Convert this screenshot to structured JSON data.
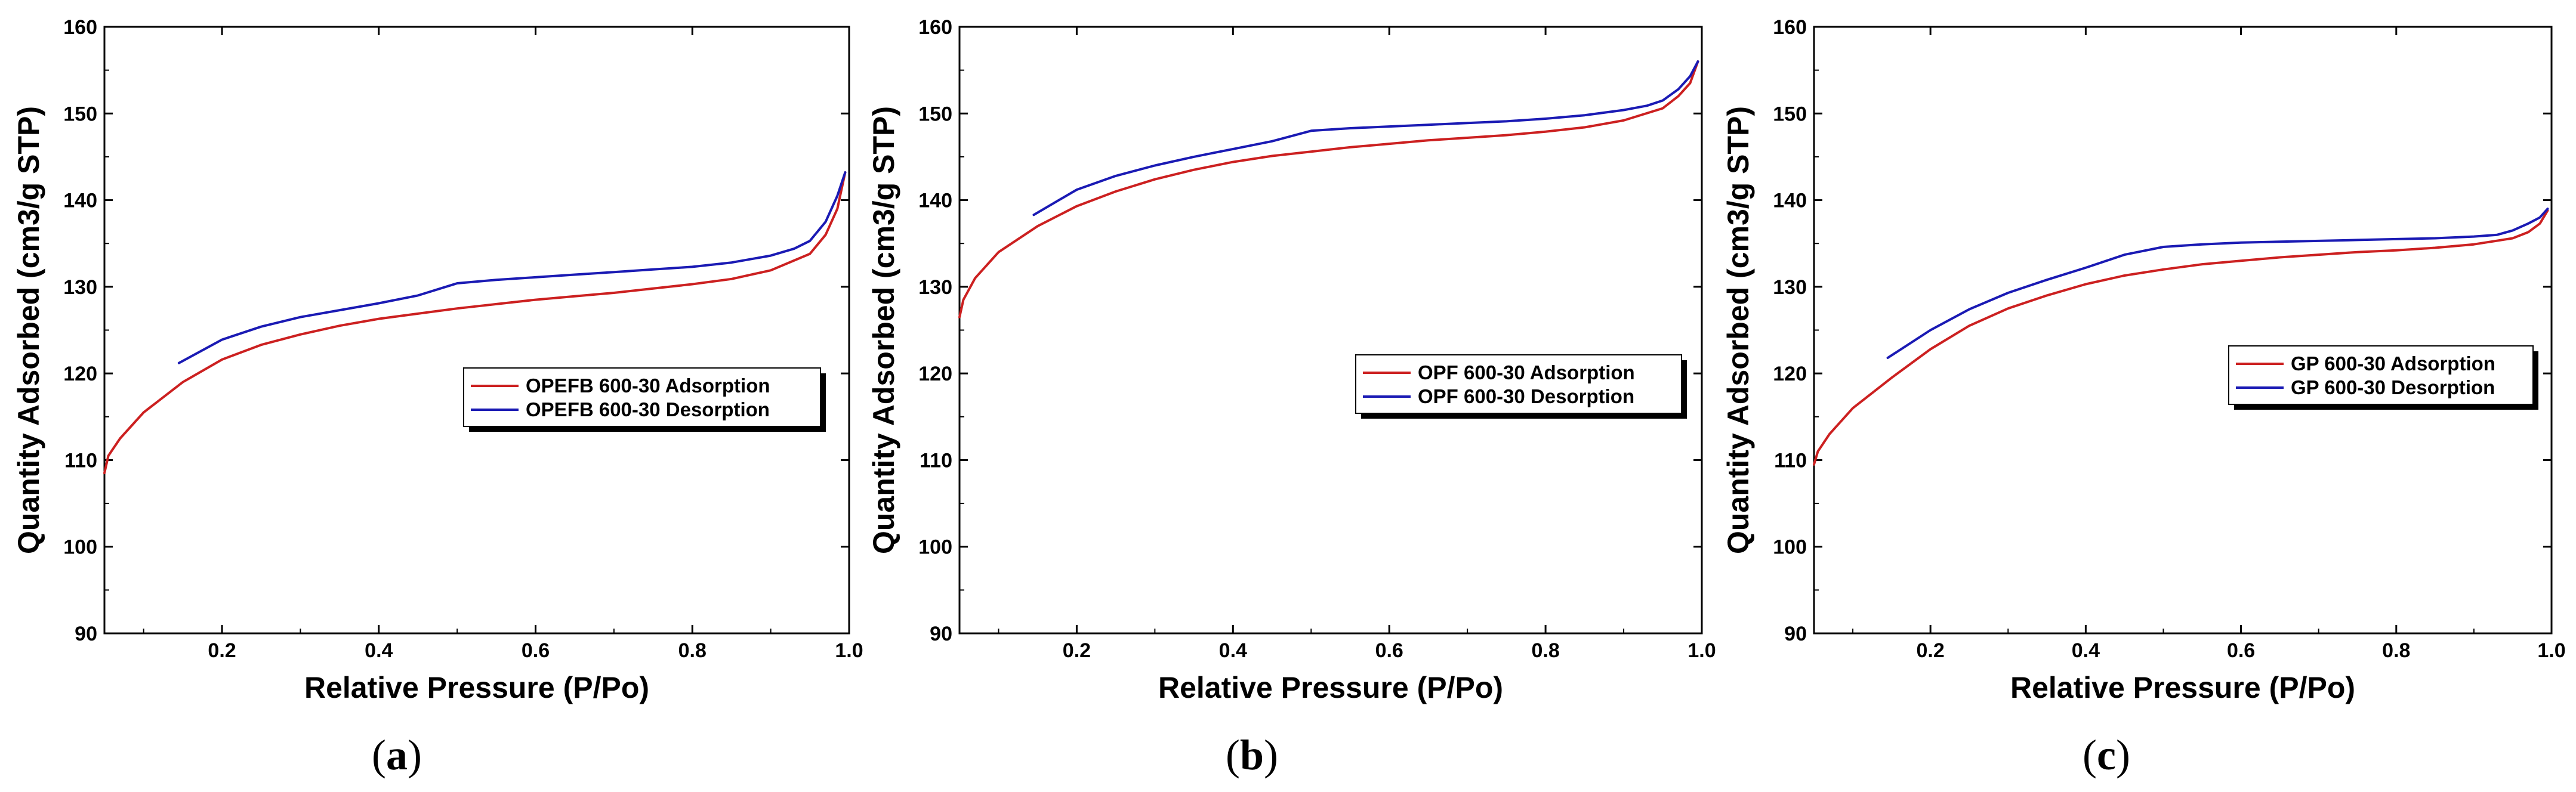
{
  "figure": {
    "colors": {
      "adsorption": "#cc2020",
      "desorption": "#1a1ab4",
      "axis": "#000000"
    }
  },
  "chart_data": [
    {
      "type": "line",
      "panel_label": "a",
      "caption_open": "(",
      "caption_close": ")",
      "xlabel": "Relative Pressure (P/Po)",
      "ylabel": "Quantity Adsorbed (cm3/g STP)",
      "xlim": [
        0.05,
        1.0
      ],
      "ylim": [
        90,
        160
      ],
      "xticks": [
        0.2,
        0.4,
        0.6,
        0.8,
        1.0
      ],
      "xtick_labels": [
        "0.2",
        "0.4",
        "0.6",
        "0.8",
        "1.0"
      ],
      "yticks": [
        90,
        100,
        110,
        120,
        130,
        140,
        150,
        160
      ],
      "ytick_labels": [
        "90",
        "100",
        "110",
        "120",
        "130",
        "140",
        "150",
        "160"
      ],
      "legend_position": "center-right",
      "series": [
        {
          "name": "OPEFB 600-30 Adsorption",
          "role": "adsorption",
          "x": [
            0.05,
            0.055,
            0.07,
            0.1,
            0.15,
            0.2,
            0.25,
            0.3,
            0.35,
            0.4,
            0.45,
            0.5,
            0.55,
            0.6,
            0.65,
            0.7,
            0.75,
            0.8,
            0.85,
            0.9,
            0.95,
            0.97,
            0.985,
            0.995
          ],
          "y": [
            108.5,
            110.5,
            112.5,
            115.5,
            119.0,
            121.6,
            123.3,
            124.5,
            125.5,
            126.3,
            126.9,
            127.5,
            128.0,
            128.5,
            128.9,
            129.3,
            129.8,
            130.3,
            130.9,
            131.9,
            133.8,
            136.0,
            139.0,
            143.2
          ]
        },
        {
          "name": "OPEFB 600-30 Desorption",
          "role": "desorption",
          "x": [
            0.145,
            0.2,
            0.25,
            0.3,
            0.35,
            0.4,
            0.45,
            0.5,
            0.55,
            0.6,
            0.65,
            0.7,
            0.75,
            0.8,
            0.85,
            0.9,
            0.93,
            0.95,
            0.97,
            0.985,
            0.995
          ],
          "y": [
            121.2,
            123.9,
            125.4,
            126.5,
            127.3,
            128.1,
            129.0,
            130.4,
            130.8,
            131.1,
            131.4,
            131.7,
            132.0,
            132.3,
            132.8,
            133.6,
            134.4,
            135.3,
            137.5,
            140.5,
            143.2
          ]
        }
      ]
    },
    {
      "type": "line",
      "panel_label": "b",
      "caption_open": "(",
      "caption_close": ")",
      "xlabel": "Relative Pressure (P/Po)",
      "ylabel": "Quantity Adsorbed (cm3/g STP)",
      "xlim": [
        0.05,
        1.0
      ],
      "ylim": [
        90,
        160
      ],
      "xticks": [
        0.2,
        0.4,
        0.6,
        0.8,
        1.0
      ],
      "xtick_labels": [
        "0.2",
        "0.4",
        "0.6",
        "0.8",
        "1.0"
      ],
      "yticks": [
        90,
        100,
        110,
        120,
        130,
        140,
        150,
        160
      ],
      "ytick_labels": [
        "90",
        "100",
        "110",
        "120",
        "130",
        "140",
        "150",
        "160"
      ],
      "legend_position": "center-right",
      "series": [
        {
          "name": "OPF 600-30 Adsorption",
          "role": "adsorption",
          "x": [
            0.05,
            0.055,
            0.07,
            0.1,
            0.15,
            0.2,
            0.25,
            0.3,
            0.35,
            0.4,
            0.45,
            0.5,
            0.55,
            0.6,
            0.65,
            0.7,
            0.75,
            0.8,
            0.85,
            0.9,
            0.95,
            0.97,
            0.985,
            0.995
          ],
          "y": [
            126.5,
            128.5,
            131.0,
            134.0,
            137.0,
            139.3,
            141.0,
            142.4,
            143.5,
            144.4,
            145.1,
            145.6,
            146.1,
            146.5,
            146.9,
            147.2,
            147.5,
            147.9,
            148.4,
            149.2,
            150.6,
            152.0,
            153.5,
            156.0
          ]
        },
        {
          "name": "OPF 600-30 Desorption",
          "role": "desorption",
          "x": [
            0.145,
            0.2,
            0.25,
            0.3,
            0.35,
            0.4,
            0.45,
            0.5,
            0.55,
            0.6,
            0.65,
            0.7,
            0.75,
            0.8,
            0.85,
            0.9,
            0.93,
            0.95,
            0.97,
            0.985,
            0.995
          ],
          "y": [
            138.3,
            141.2,
            142.8,
            144.0,
            145.0,
            145.9,
            146.8,
            148.0,
            148.3,
            148.5,
            148.7,
            148.9,
            149.1,
            149.4,
            149.8,
            150.4,
            150.9,
            151.5,
            152.8,
            154.3,
            156.0
          ]
        }
      ]
    },
    {
      "type": "line",
      "panel_label": "c",
      "caption_open": "(",
      "caption_close": ")",
      "xlabel": "Relative Pressure (P/Po)",
      "ylabel": "Quantity Adsorbed (cm3/g STP)",
      "xlim": [
        0.05,
        1.0
      ],
      "ylim": [
        90,
        160
      ],
      "xticks": [
        0.2,
        0.4,
        0.6,
        0.8,
        1.0
      ],
      "xtick_labels": [
        "0.2",
        "0.4",
        "0.6",
        "0.8",
        "1.0"
      ],
      "yticks": [
        90,
        100,
        110,
        120,
        130,
        140,
        150,
        160
      ],
      "ytick_labels": [
        "90",
        "100",
        "110",
        "120",
        "130",
        "140",
        "150",
        "160"
      ],
      "legend_position": "center-right",
      "series": [
        {
          "name": "GP 600-30 Adsorption",
          "role": "adsorption",
          "x": [
            0.05,
            0.055,
            0.07,
            0.1,
            0.15,
            0.2,
            0.25,
            0.3,
            0.35,
            0.4,
            0.45,
            0.5,
            0.55,
            0.6,
            0.65,
            0.7,
            0.75,
            0.8,
            0.85,
            0.9,
            0.95,
            0.97,
            0.985,
            0.995
          ],
          "y": [
            109.5,
            111.0,
            113.0,
            116.0,
            119.5,
            122.8,
            125.5,
            127.5,
            129.0,
            130.3,
            131.3,
            132.0,
            132.6,
            133.0,
            133.4,
            133.7,
            134.0,
            134.2,
            134.5,
            134.9,
            135.6,
            136.3,
            137.3,
            138.8
          ]
        },
        {
          "name": "GP 600-30 Desorption",
          "role": "desorption",
          "x": [
            0.145,
            0.2,
            0.25,
            0.3,
            0.35,
            0.4,
            0.45,
            0.5,
            0.55,
            0.6,
            0.65,
            0.7,
            0.75,
            0.8,
            0.85,
            0.9,
            0.93,
            0.95,
            0.97,
            0.985,
            0.995
          ],
          "y": [
            121.8,
            125.0,
            127.4,
            129.3,
            130.8,
            132.2,
            133.7,
            134.6,
            134.9,
            135.1,
            135.2,
            135.3,
            135.4,
            135.5,
            135.6,
            135.8,
            136.0,
            136.5,
            137.3,
            138.0,
            139.0
          ]
        }
      ]
    }
  ]
}
